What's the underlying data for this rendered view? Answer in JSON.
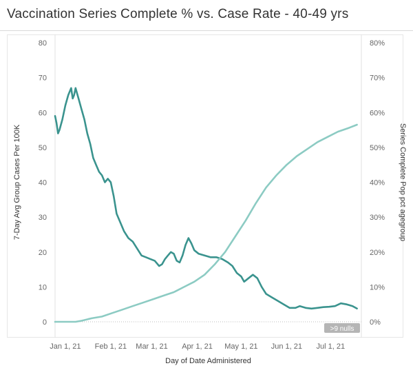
{
  "chart_data": {
    "type": "line",
    "title": "Vaccination Series Complete % vs. Case Rate  - 40-49 yrs",
    "xlabel": "Day of Date Administered",
    "ylabel_left": "7-Day Avg Group Cases Per 100K",
    "ylabel_right": "Series Complete Pop pct agegroup",
    "x_start": "2020-12-25",
    "x_end": "2021-07-22",
    "x_ticks": [
      "Jan 1, 21",
      "Feb 1, 21",
      "Mar 1, 21",
      "Apr 1, 21",
      "May 1, 21",
      "Jun 1, 21",
      "Jul 1, 21"
    ],
    "y_left_ticks": [
      "0",
      "10",
      "20",
      "30",
      "40",
      "50",
      "60",
      "70",
      "80"
    ],
    "y_right_ticks": [
      "0%",
      "10%",
      "20%",
      "30%",
      "40%",
      "50%",
      "60%",
      "70%",
      "80%"
    ],
    "ylim_left": [
      0,
      80
    ],
    "ylim_right": [
      0,
      80
    ],
    "null_badge": ">9 nulls",
    "colors": {
      "cases": "#3a938e",
      "vaccination": "#8ccbc3"
    },
    "series": [
      {
        "axis": "left",
        "points": [
          [
            "2020-12-25",
            59
          ],
          [
            "2020-12-26",
            57
          ],
          [
            "2020-12-27",
            54
          ],
          [
            "2020-12-28",
            55
          ],
          [
            "2020-12-30",
            58
          ],
          [
            "2021-01-01",
            62
          ],
          [
            "2021-01-03",
            65
          ],
          [
            "2021-01-05",
            67
          ],
          [
            "2021-01-06",
            64
          ],
          [
            "2021-01-07",
            65
          ],
          [
            "2021-01-08",
            67
          ],
          [
            "2021-01-10",
            64
          ],
          [
            "2021-01-12",
            61
          ],
          [
            "2021-01-14",
            58
          ],
          [
            "2021-01-16",
            54
          ],
          [
            "2021-01-18",
            51
          ],
          [
            "2021-01-20",
            47
          ],
          [
            "2021-01-22",
            45
          ],
          [
            "2021-01-24",
            43
          ],
          [
            "2021-01-26",
            42
          ],
          [
            "2021-01-28",
            40
          ],
          [
            "2021-01-30",
            41
          ],
          [
            "2021-02-01",
            40
          ],
          [
            "2021-02-03",
            36
          ],
          [
            "2021-02-05",
            31
          ],
          [
            "2021-02-07",
            29
          ],
          [
            "2021-02-10",
            26
          ],
          [
            "2021-02-13",
            24
          ],
          [
            "2021-02-16",
            23
          ],
          [
            "2021-02-19",
            21
          ],
          [
            "2021-02-22",
            19
          ],
          [
            "2021-02-25",
            18.5
          ],
          [
            "2021-02-28",
            18
          ],
          [
            "2021-03-03",
            17.5
          ],
          [
            "2021-03-06",
            16
          ],
          [
            "2021-03-08",
            16.5
          ],
          [
            "2021-03-10",
            18
          ],
          [
            "2021-03-12",
            19
          ],
          [
            "2021-03-14",
            20
          ],
          [
            "2021-03-16",
            19.5
          ],
          [
            "2021-03-18",
            17.5
          ],
          [
            "2021-03-20",
            17
          ],
          [
            "2021-03-22",
            19
          ],
          [
            "2021-03-24",
            22
          ],
          [
            "2021-03-26",
            24
          ],
          [
            "2021-03-28",
            22.5
          ],
          [
            "2021-03-30",
            20.5
          ],
          [
            "2021-04-02",
            19.5
          ],
          [
            "2021-04-06",
            19
          ],
          [
            "2021-04-10",
            18.5
          ],
          [
            "2021-04-14",
            18.5
          ],
          [
            "2021-04-18",
            18
          ],
          [
            "2021-04-22",
            17
          ],
          [
            "2021-04-25",
            16
          ],
          [
            "2021-04-28",
            14
          ],
          [
            "2021-05-01",
            13
          ],
          [
            "2021-05-03",
            11.5
          ],
          [
            "2021-05-06",
            12.5
          ],
          [
            "2021-05-09",
            13.5
          ],
          [
            "2021-05-12",
            12.5
          ],
          [
            "2021-05-15",
            10
          ],
          [
            "2021-05-18",
            8
          ],
          [
            "2021-05-22",
            7
          ],
          [
            "2021-05-26",
            6
          ],
          [
            "2021-05-30",
            5
          ],
          [
            "2021-06-03",
            4
          ],
          [
            "2021-06-07",
            4
          ],
          [
            "2021-06-10",
            4.5
          ],
          [
            "2021-06-14",
            4
          ],
          [
            "2021-06-18",
            3.8
          ],
          [
            "2021-06-22",
            4
          ],
          [
            "2021-06-26",
            4.2
          ],
          [
            "2021-06-30",
            4.3
          ],
          [
            "2021-07-04",
            4.5
          ],
          [
            "2021-07-08",
            5.3
          ],
          [
            "2021-07-12",
            5
          ],
          [
            "2021-07-16",
            4.5
          ],
          [
            "2021-07-19",
            3.8
          ]
        ]
      },
      {
        "axis": "right",
        "points": [
          [
            "2020-12-25",
            0
          ],
          [
            "2021-01-01",
            0
          ],
          [
            "2021-01-08",
            0
          ],
          [
            "2021-01-12",
            0.3
          ],
          [
            "2021-01-19",
            1
          ],
          [
            "2021-01-26",
            1.5
          ],
          [
            "2021-02-02",
            2.5
          ],
          [
            "2021-02-09",
            3.5
          ],
          [
            "2021-02-16",
            4.5
          ],
          [
            "2021-02-23",
            5.5
          ],
          [
            "2021-03-02",
            6.5
          ],
          [
            "2021-03-09",
            7.5
          ],
          [
            "2021-03-16",
            8.5
          ],
          [
            "2021-03-23",
            10
          ],
          [
            "2021-03-30",
            11.5
          ],
          [
            "2021-04-06",
            13.5
          ],
          [
            "2021-04-13",
            16.5
          ],
          [
            "2021-04-20",
            20
          ],
          [
            "2021-04-27",
            24.5
          ],
          [
            "2021-05-04",
            29
          ],
          [
            "2021-05-11",
            34
          ],
          [
            "2021-05-18",
            38.5
          ],
          [
            "2021-05-25",
            42
          ],
          [
            "2021-06-01",
            45
          ],
          [
            "2021-06-08",
            47.5
          ],
          [
            "2021-06-15",
            49.5
          ],
          [
            "2021-06-22",
            51.5
          ],
          [
            "2021-06-29",
            53
          ],
          [
            "2021-07-06",
            54.5
          ],
          [
            "2021-07-13",
            55.5
          ],
          [
            "2021-07-19",
            56.5
          ]
        ]
      }
    ]
  }
}
